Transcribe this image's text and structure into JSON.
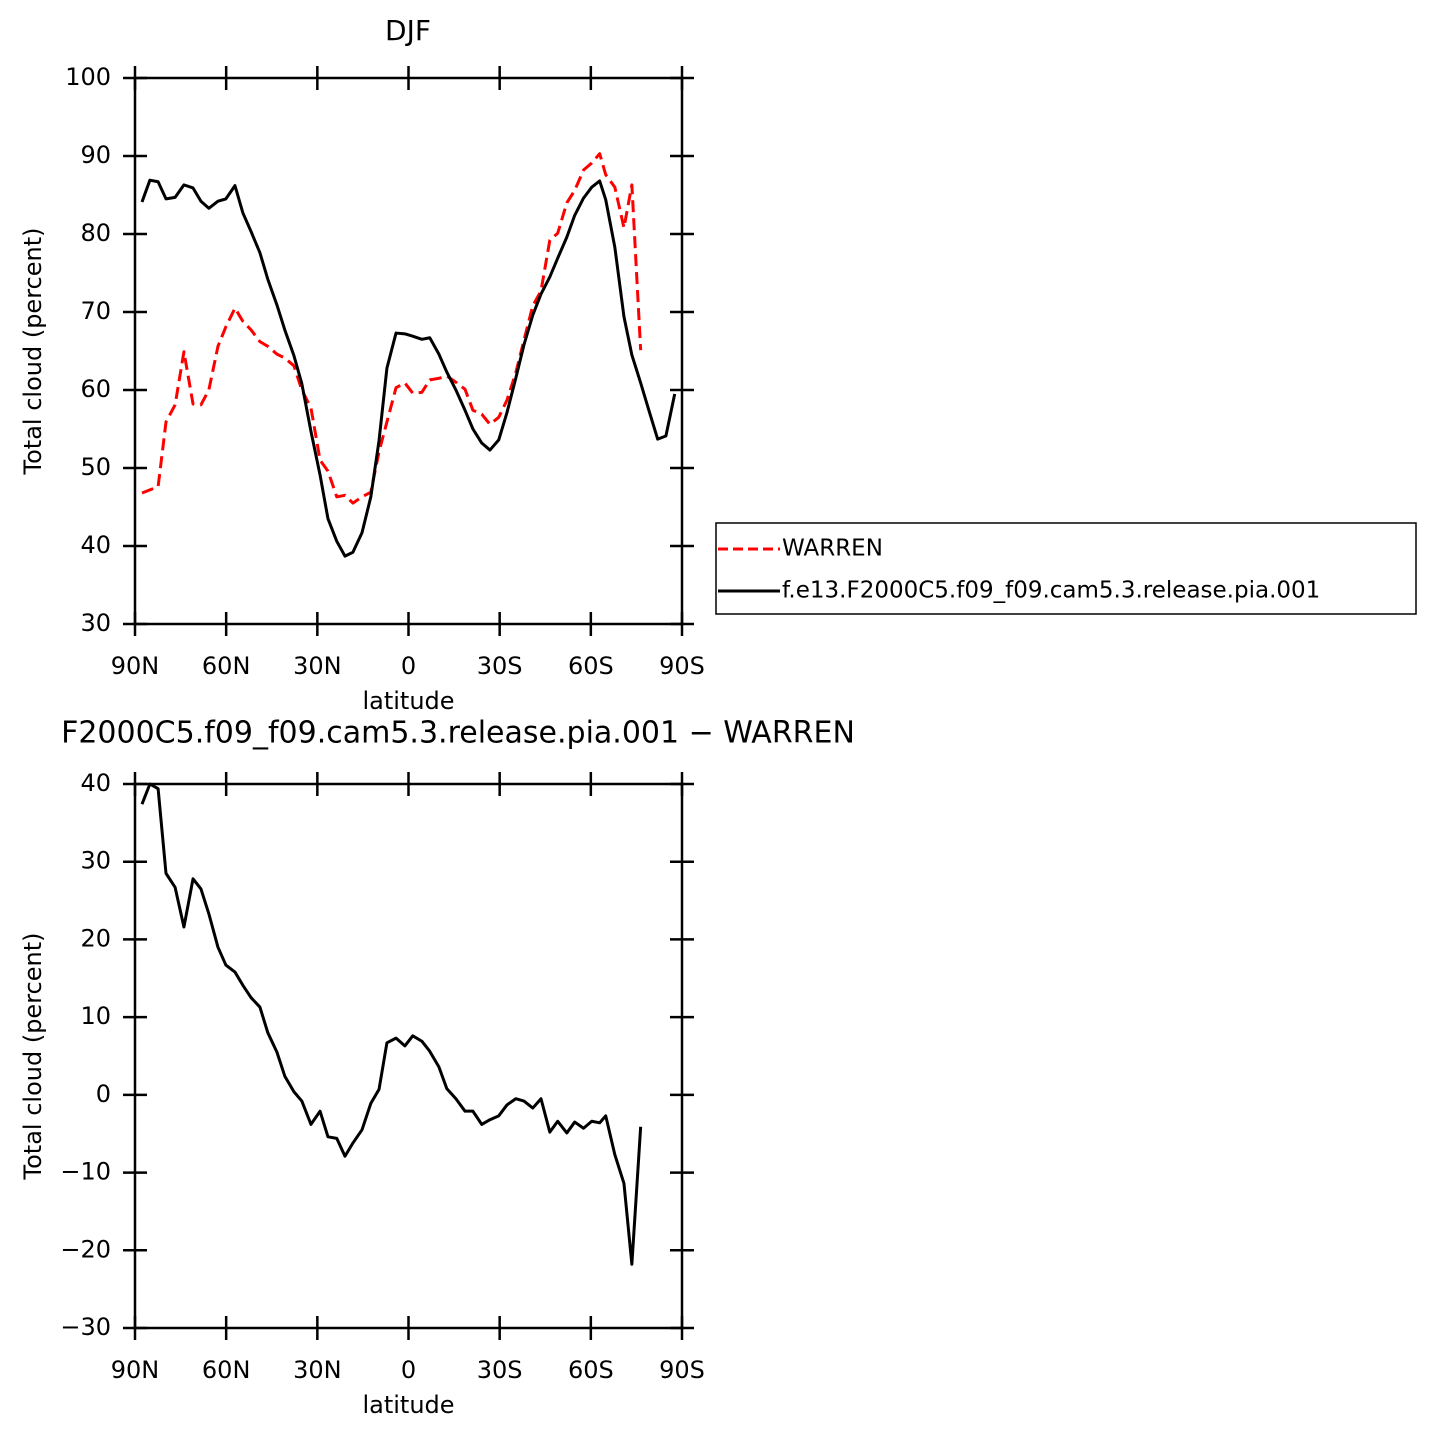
{
  "chart_data": [
    {
      "type": "line",
      "title": "DJF",
      "x_label": "latitude",
      "y_label": "Total cloud (percent)",
      "x": [
        87.7,
        85.1,
        82.4,
        79.8,
        76.8,
        73.9,
        70.9,
        68.3,
        65.7,
        62.7,
        60.1,
        57.1,
        54.5,
        51.8,
        48.9,
        46.3,
        43.3,
        40.7,
        37.7,
        35.1,
        32.1,
        29.1,
        26.5,
        23.6,
        20.9,
        18.3,
        15.3,
        12.4,
        9.7,
        7.1,
        4.1,
        1.2,
        -1.4,
        -4.4,
        -7.0,
        -10.0,
        -12.6,
        -15.6,
        -18.6,
        -21.2,
        -24.1,
        -26.8,
        -29.7,
        -32.4,
        -35.3,
        -38.0,
        -40.9,
        -43.6,
        -46.5,
        -49.1,
        -52.1,
        -54.7,
        -57.6,
        -60.3,
        -62.9,
        -64.9,
        -67.9,
        -70.9,
        -73.5,
        -76.4,
        -79.1,
        -82.0,
        -84.7,
        -87.6
      ],
      "series": [
        {
          "name": "WARREN",
          "color": "#ff0000",
          "dash": true,
          "values": [
            46.8,
            47.2,
            47.6,
            55.9,
            58.1,
            64.9,
            58.2,
            58.1,
            60.0,
            65.6,
            68.1,
            70.5,
            68.8,
            67.7,
            66.2,
            65.6,
            64.6,
            64.1,
            63.1,
            60.0,
            57.7,
            51.0,
            49.6,
            46.3,
            46.5,
            45.5,
            46.3,
            46.9,
            52.1,
            55.9,
            60.3,
            60.9,
            59.6,
            59.7,
            61.3,
            61.5,
            61.8,
            61.0,
            60.1,
            57.4,
            56.9,
            55.6,
            56.5,
            58.7,
            62.2,
            66.4,
            70.8,
            72.7,
            79.2,
            80.1,
            84.0,
            85.6,
            88.2,
            89.1,
            90.3,
            87.6,
            86.0,
            80.8,
            86.3,
            65.1,
            null,
            null,
            null,
            null
          ]
        },
        {
          "name": "f.e13.F2000C5.f09_f09.cam5.3.release.pia.001",
          "color": "#000000",
          "dash": false,
          "values": [
            84.1,
            86.9,
            86.7,
            84.5,
            84.7,
            86.3,
            85.9,
            84.2,
            83.3,
            84.2,
            84.5,
            86.2,
            82.7,
            80.3,
            77.6,
            74.2,
            70.9,
            67.7,
            64.4,
            60.8,
            54.7,
            49.1,
            43.5,
            40.6,
            38.7,
            39.2,
            41.7,
            46.3,
            53.5,
            62.8,
            67.3,
            67.2,
            66.9,
            66.5,
            66.7,
            64.6,
            62.3,
            60.0,
            57.4,
            55.0,
            53.2,
            52.3,
            53.6,
            57.1,
            61.5,
            65.8,
            69.6,
            72.3,
            74.5,
            76.9,
            79.6,
            82.4,
            84.6,
            86.0,
            86.8,
            84.4,
            78.3,
            69.4,
            64.5,
            60.9,
            57.4,
            53.7,
            54.1,
            59.5
          ]
        }
      ],
      "xlim": [
        90,
        -90
      ],
      "xticks": [
        {
          "value": 90,
          "label": "90N"
        },
        {
          "value": 60,
          "label": "60N"
        },
        {
          "value": 30,
          "label": "30N"
        },
        0,
        {
          "value": -30,
          "label": "30S"
        },
        {
          "value": -60,
          "label": "60S"
        },
        {
          "value": -90,
          "label": "90S"
        }
      ],
      "ylim": [
        30,
        100
      ],
      "yticks": [
        30,
        40,
        50,
        60,
        70,
        80,
        90,
        100
      ],
      "legend": "right"
    },
    {
      "type": "line",
      "title": "F2000C5.f09_f09.cam5.3.release.pia.001 − WARREN",
      "x_label": "latitude",
      "y_label": "Total cloud (percent)",
      "x": [
        87.7,
        85.1,
        82.4,
        79.8,
        76.8,
        73.9,
        70.9,
        68.3,
        65.7,
        62.7,
        60.1,
        57.1,
        54.5,
        51.8,
        48.9,
        46.3,
        43.3,
        40.7,
        37.7,
        35.1,
        32.1,
        29.1,
        26.5,
        23.6,
        20.9,
        18.3,
        15.3,
        12.4,
        9.7,
        7.1,
        4.1,
        1.2,
        -1.4,
        -4.4,
        -7.0,
        -10.0,
        -12.6,
        -15.6,
        -18.6,
        -21.2,
        -24.1,
        -26.8,
        -29.7,
        -32.4,
        -35.3,
        -38.0,
        -40.9,
        -43.6,
        -46.5,
        -49.1,
        -52.1,
        -54.7,
        -57.6,
        -60.3,
        -62.9,
        -64.9,
        -67.9,
        -70.9,
        -73.5,
        -76.4,
        -79.1,
        -82.0,
        -84.7,
        -87.6
      ],
      "series": [
        {
          "color": "#000000",
          "dash": false,
          "values": [
            37.4,
            40.0,
            39.4,
            28.5,
            26.7,
            21.6,
            27.8,
            26.5,
            23.3,
            19.0,
            16.7,
            15.8,
            14.1,
            12.5,
            11.3,
            8.0,
            5.5,
            2.4,
            0.4,
            -0.8,
            -3.8,
            -2.1,
            -5.4,
            -5.6,
            -7.9,
            -6.2,
            -4.5,
            -1.1,
            0.7,
            6.7,
            7.3,
            6.3,
            7.6,
            6.9,
            5.6,
            3.6,
            0.8,
            -0.5,
            -2.1,
            -2.1,
            -3.8,
            -3.2,
            -2.7,
            -1.3,
            -0.5,
            -0.8,
            -1.7,
            -0.5,
            -4.8,
            -3.4,
            -4.9,
            -3.5,
            -4.3,
            -3.4,
            -3.6,
            -2.7,
            -7.7,
            -11.4,
            -21.8,
            -4.1,
            null,
            null,
            null,
            null
          ]
        }
      ],
      "xlim": [
        90,
        -90
      ],
      "xticks": [
        {
          "value": 90,
          "label": "90N"
        },
        {
          "value": 60,
          "label": "60N"
        },
        {
          "value": 30,
          "label": "30N"
        },
        0,
        {
          "value": -30,
          "label": "30S"
        },
        {
          "value": -60,
          "label": "60S"
        },
        {
          "value": -90,
          "label": "90S"
        }
      ],
      "ylim": [
        -30,
        40
      ],
      "yticks": [
        {
          "value": -30,
          "label": "−30"
        },
        {
          "value": -20,
          "label": "−20"
        },
        {
          "value": -10,
          "label": "−10"
        },
        0,
        10,
        20,
        30,
        40
      ]
    }
  ]
}
